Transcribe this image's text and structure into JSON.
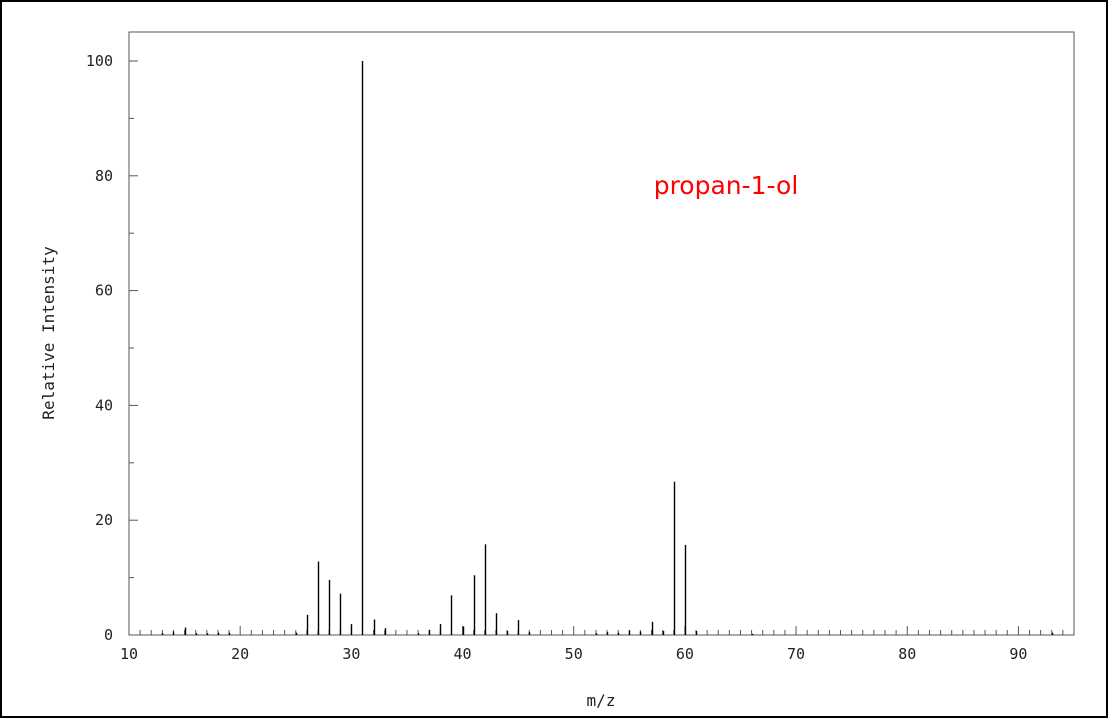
{
  "chart_data": {
    "type": "bar",
    "xlabel": "m/z",
    "ylabel": "Relative Intensity",
    "xlim": [
      10,
      95
    ],
    "ylim": [
      0,
      100
    ],
    "x_major_ticks": [
      10,
      20,
      30,
      40,
      50,
      60,
      70,
      80,
      90
    ],
    "x_minor_step": 1,
    "y_major_ticks": [
      0,
      20,
      40,
      60,
      80,
      100
    ],
    "y_minor_step": 10,
    "grid": false,
    "annotation": {
      "text": "propan-1-ol",
      "color": "#ff0000"
    },
    "peaks": [
      {
        "mz": 13,
        "intensity": 0.3
      },
      {
        "mz": 14,
        "intensity": 0.6
      },
      {
        "mz": 15,
        "intensity": 1.3
      },
      {
        "mz": 16,
        "intensity": 0.3
      },
      {
        "mz": 17,
        "intensity": 0.3
      },
      {
        "mz": 18,
        "intensity": 0.4
      },
      {
        "mz": 19,
        "intensity": 0.4
      },
      {
        "mz": 25,
        "intensity": 0.4
      },
      {
        "mz": 26,
        "intensity": 3.5
      },
      {
        "mz": 27,
        "intensity": 12.8
      },
      {
        "mz": 28,
        "intensity": 9.6
      },
      {
        "mz": 29,
        "intensity": 7.2
      },
      {
        "mz": 30,
        "intensity": 1.9
      },
      {
        "mz": 31,
        "intensity": 100
      },
      {
        "mz": 32,
        "intensity": 2.7
      },
      {
        "mz": 33,
        "intensity": 1.2
      },
      {
        "mz": 36,
        "intensity": 0.3
      },
      {
        "mz": 37,
        "intensity": 0.9
      },
      {
        "mz": 38,
        "intensity": 1.9
      },
      {
        "mz": 39,
        "intensity": 6.9
      },
      {
        "mz": 40,
        "intensity": 1.5
      },
      {
        "mz": 41,
        "intensity": 10.4
      },
      {
        "mz": 42,
        "intensity": 15.8
      },
      {
        "mz": 43,
        "intensity": 3.8
      },
      {
        "mz": 44,
        "intensity": 0.7
      },
      {
        "mz": 45,
        "intensity": 2.6
      },
      {
        "mz": 46,
        "intensity": 0.5
      },
      {
        "mz": 52,
        "intensity": 0.3
      },
      {
        "mz": 53,
        "intensity": 0.5
      },
      {
        "mz": 54,
        "intensity": 0.4
      },
      {
        "mz": 55,
        "intensity": 0.8
      },
      {
        "mz": 56,
        "intensity": 0.6
      },
      {
        "mz": 57,
        "intensity": 2.3
      },
      {
        "mz": 58,
        "intensity": 0.7
      },
      {
        "mz": 59,
        "intensity": 26.7
      },
      {
        "mz": 60,
        "intensity": 15.7
      },
      {
        "mz": 61,
        "intensity": 0.7
      },
      {
        "mz": 66,
        "intensity": 0.2
      },
      {
        "mz": 93,
        "intensity": 0.4
      }
    ]
  }
}
